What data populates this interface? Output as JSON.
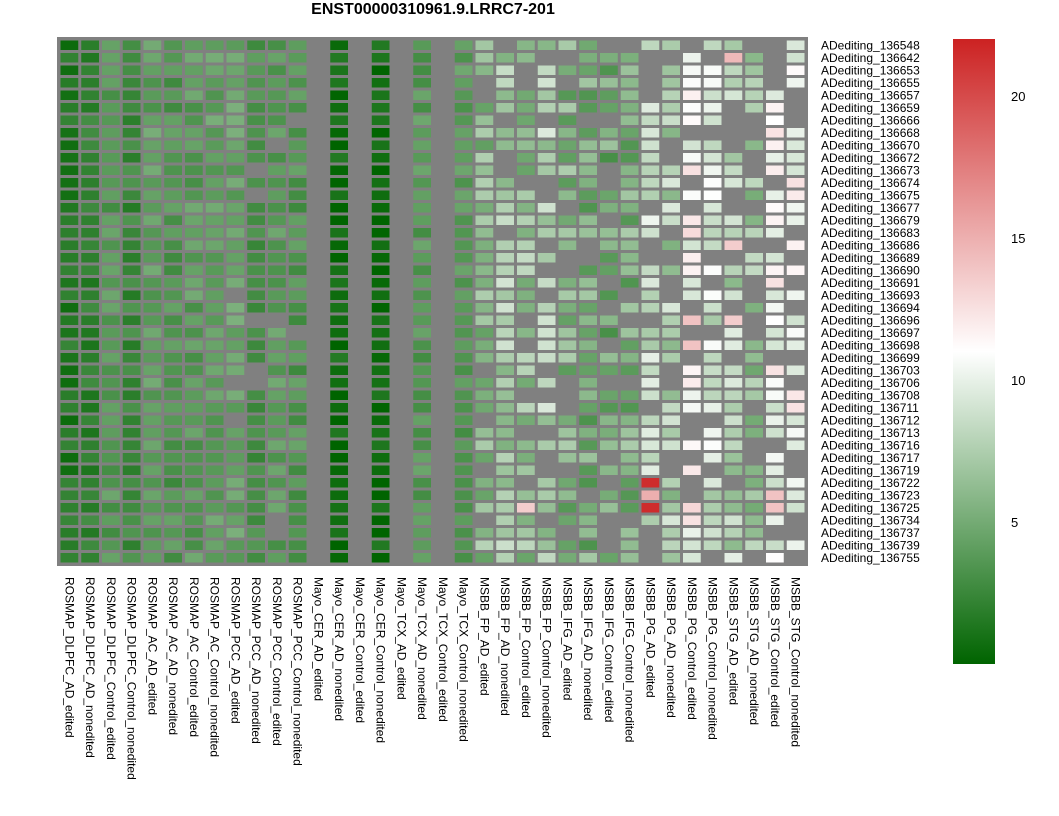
{
  "chart_data": {
    "type": "heatmap",
    "title": "ENST00000310961.9.LRRC7-201",
    "rows": [
      "ADediting_136548",
      "ADediting_136642",
      "ADediting_136653",
      "ADediting_136655",
      "ADediting_136657",
      "ADediting_136659",
      "ADediting_136666",
      "ADediting_136668",
      "ADediting_136670",
      "ADediting_136672",
      "ADediting_136673",
      "ADediting_136674",
      "ADediting_136675",
      "ADediting_136677",
      "ADediting_136679",
      "ADediting_136683",
      "ADediting_136686",
      "ADediting_136689",
      "ADediting_136690",
      "ADediting_136691",
      "ADediting_136693",
      "ADediting_136694",
      "ADediting_136696",
      "ADediting_136697",
      "ADediting_136698",
      "ADediting_136699",
      "ADediting_136703",
      "ADediting_136706",
      "ADediting_136708",
      "ADediting_136711",
      "ADediting_136712",
      "ADediting_136713",
      "ADediting_136716",
      "ADediting_136717",
      "ADediting_136719",
      "ADediting_136722",
      "ADediting_136723",
      "ADediting_136725",
      "ADediting_136734",
      "ADediting_136737",
      "ADediting_136739",
      "ADediting_136755"
    ],
    "columns": [
      "ROSMAP_DLPFC_AD_edited",
      "ROSMAP_DLPFC_AD_nonedited",
      "ROSMAP_DLPFC_Control_edited",
      "ROSMAP_DLPFC_Control_nonedited",
      "ROSMAP_AC_AD_edited",
      "ROSMAP_AC_AD_nonedited",
      "ROSMAP_AC_Control_edited",
      "ROSMAP_AC_Control_nonedited",
      "ROSMAP_PCC_AD_edited",
      "ROSMAP_PCC_AD_nonedited",
      "ROSMAP_PCC_Control_edited",
      "ROSMAP_PCC_Control_nonedited",
      "Mayo_CER_AD_edited",
      "Mayo_CER_AD_nonedited",
      "Mayo_CER_Control_edited",
      "Mayo_CER_Control_nonedited",
      "Mayo_TCX_AD_edited",
      "Mayo_TCX_AD_nonedited",
      "Mayo_TCX_Control_edited",
      "Mayo_TCX_Control_nonedited",
      "MSBB_FP_AD_edited",
      "MSBB_FP_AD_nonedited",
      "MSBB_FP_Control_edited",
      "MSBB_FP_Control_nonedited",
      "MSBB_IFG_AD_edited",
      "MSBB_IFG_AD_nonedited",
      "MSBB_IFG_Control_edited",
      "MSBB_IFG_Control_nonedited",
      "MSBB_PG_AD_edited",
      "MSBB_PG_AD_nonedited",
      "MSBB_PG_Control_edited",
      "MSBB_PG_Control_nonedited",
      "MSBB_STG_AD_edited",
      "MSBB_STG_AD_nonedited",
      "MSBB_STG_Control_edited",
      "MSBB_STG_Control_nonedited"
    ],
    "colorscale": {
      "min": 0,
      "max": 22,
      "mid": 11,
      "low": "#006400",
      "mid_color": "#ffffff",
      "high": "#cc2222",
      "na_color": "#808080"
    },
    "legend": {
      "ticks": [
        5,
        10,
        15,
        20
      ],
      "placement": "right"
    },
    "column_profiles": {
      "ROSMAP_DLPFC_AD_edited": 1.5,
      "ROSMAP_DLPFC_AD_nonedited": 2.2,
      "ROSMAP_DLPFC_Control_edited": 3.8,
      "ROSMAP_DLPFC_Control_nonedited": 2.5,
      "ROSMAP_AC_AD_edited": 4.2,
      "ROSMAP_AC_AD_nonedited": 3.5,
      "ROSMAP_AC_Control_edited": 4.0,
      "ROSMAP_AC_Control_nonedited": 4.3,
      "ROSMAP_PCC_AD_edited": 4.5,
      "ROSMAP_PCC_AD_nonedited": 3.2,
      "ROSMAP_PCC_Control_edited": 4.0,
      "ROSMAP_PCC_Control_nonedited": 3.6,
      "Mayo_CER_AD_edited": null,
      "Mayo_CER_AD_nonedited": 0.6,
      "Mayo_CER_Control_edited": null,
      "Mayo_CER_Control_nonedited": 0.6,
      "Mayo_TCX_AD_edited": null,
      "Mayo_TCX_AD_nonedited": 3.8,
      "Mayo_TCX_Control_edited": null,
      "Mayo_TCX_Control_nonedited": 3.9,
      "MSBB_FP_AD_edited": 6.0,
      "MSBB_FP_AD_nonedited": 7.2,
      "MSBB_FP_Control_edited": 6.5,
      "MSBB_FP_Control_nonedited": 7.6,
      "MSBB_IFG_AD_edited": 5.5,
      "MSBB_IFG_AD_nonedited": 5.2,
      "MSBB_IFG_Control_edited": 5.0,
      "MSBB_IFG_Control_nonedited": 5.4,
      "MSBB_PG_AD_edited": 8.5,
      "MSBB_PG_AD_nonedited": 7.5,
      "MSBB_PG_Control_edited": 11.0,
      "MSBB_PG_Control_nonedited": 9.0,
      "MSBB_STG_AD_edited": 8.0,
      "MSBB_STG_AD_nonedited": 6.5,
      "MSBB_STG_Control_edited": 10.5,
      "MSBB_STG_Control_nonedited": 10.8
    },
    "highlights": [
      {
        "row": "ADediting_136722",
        "column": "MSBB_PG_AD_edited",
        "value": 21.5
      },
      {
        "row": "ADediting_136725",
        "column": "MSBB_PG_AD_edited",
        "value": 21.5
      },
      {
        "row": "ADediting_136723",
        "column": "MSBB_PG_AD_edited",
        "value": 15.0
      },
      {
        "row": "ADediting_136642",
        "column": "MSBB_STG_AD_edited",
        "value": 14.5
      },
      {
        "row": "ADediting_136696",
        "column": "MSBB_PG_Control_edited",
        "value": 14.0
      },
      {
        "row": "ADediting_136698",
        "column": "MSBB_PG_Control_edited",
        "value": 14.0
      },
      {
        "row": "ADediting_136723",
        "column": "MSBB_STG_Control_edited",
        "value": 14.0
      },
      {
        "row": "ADediting_136725",
        "column": "MSBB_STG_Control_edited",
        "value": 14.0
      },
      {
        "row": "ADediting_136725",
        "column": "MSBB_FP_Control_edited",
        "value": 13.5
      },
      {
        "row": "ADediting_136686",
        "column": "MSBB_STG_AD_edited",
        "value": 13.5
      },
      {
        "row": "ADediting_136696",
        "column": "MSBB_STG_AD_edited",
        "value": 13.5
      }
    ]
  }
}
